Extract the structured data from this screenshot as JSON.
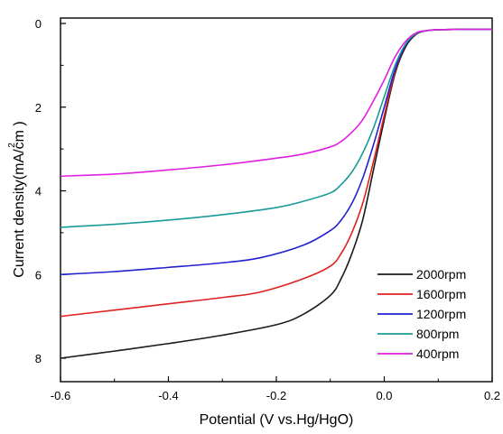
{
  "chart_data": {
    "type": "line",
    "title": "",
    "xlabel": "Potential (V vs.Hg/HgO)",
    "ylabel": "Current density(mA/cm )",
    "ylabel_superscript": "2",
    "xlim": [
      -0.6,
      0.2
    ],
    "ylim": [
      0,
      8.5
    ],
    "y_inverted": true,
    "grid": false,
    "legend_position": "bottom-right",
    "x_ticks": [
      "-0.6",
      "-0.4",
      "-0.2",
      "0.0",
      "0.2"
    ],
    "y_ticks": [
      "0",
      "2",
      "4",
      "6",
      "8"
    ],
    "series": [
      {
        "name": "2000rpm",
        "color": "#1a1a1a",
        "points": [
          [
            -0.6,
            8.0
          ],
          [
            -0.5,
            7.83
          ],
          [
            -0.4,
            7.65
          ],
          [
            -0.3,
            7.45
          ],
          [
            -0.2,
            7.2
          ],
          [
            -0.15,
            6.95
          ],
          [
            -0.1,
            6.5
          ],
          [
            -0.08,
            6.1
          ],
          [
            -0.06,
            5.5
          ],
          [
            -0.04,
            4.7
          ],
          [
            -0.02,
            3.5
          ],
          [
            0.0,
            2.3
          ],
          [
            0.02,
            1.2
          ],
          [
            0.04,
            0.55
          ],
          [
            0.06,
            0.25
          ],
          [
            0.08,
            0.17
          ],
          [
            0.1,
            0.15
          ],
          [
            0.15,
            0.14
          ],
          [
            0.2,
            0.14
          ]
        ]
      },
      {
        "name": "1600rpm",
        "color": "#e02020",
        "points": [
          [
            -0.6,
            7.0
          ],
          [
            -0.5,
            6.85
          ],
          [
            -0.4,
            6.7
          ],
          [
            -0.3,
            6.55
          ],
          [
            -0.23,
            6.42
          ],
          [
            -0.15,
            6.1
          ],
          [
            -0.1,
            5.8
          ],
          [
            -0.08,
            5.5
          ],
          [
            -0.06,
            5.0
          ],
          [
            -0.04,
            4.3
          ],
          [
            -0.02,
            3.3
          ],
          [
            0.0,
            2.2
          ],
          [
            0.02,
            1.15
          ],
          [
            0.04,
            0.5
          ],
          [
            0.06,
            0.24
          ],
          [
            0.08,
            0.17
          ],
          [
            0.1,
            0.15
          ],
          [
            0.15,
            0.14
          ],
          [
            0.2,
            0.14
          ]
        ]
      },
      {
        "name": "1200rpm",
        "color": "#2020d0",
        "points": [
          [
            -0.6,
            6.0
          ],
          [
            -0.5,
            5.93
          ],
          [
            -0.4,
            5.83
          ],
          [
            -0.3,
            5.72
          ],
          [
            -0.23,
            5.6
          ],
          [
            -0.15,
            5.3
          ],
          [
            -0.1,
            4.95
          ],
          [
            -0.08,
            4.7
          ],
          [
            -0.06,
            4.3
          ],
          [
            -0.04,
            3.7
          ],
          [
            -0.02,
            2.9
          ],
          [
            0.0,
            2.0
          ],
          [
            0.02,
            1.1
          ],
          [
            0.04,
            0.5
          ],
          [
            0.06,
            0.24
          ],
          [
            0.08,
            0.17
          ],
          [
            0.1,
            0.15
          ],
          [
            0.15,
            0.14
          ],
          [
            0.2,
            0.14
          ]
        ]
      },
      {
        "name": "800rpm",
        "color": "#1a9a9a",
        "points": [
          [
            -0.6,
            4.87
          ],
          [
            -0.5,
            4.8
          ],
          [
            -0.4,
            4.7
          ],
          [
            -0.3,
            4.57
          ],
          [
            -0.2,
            4.4
          ],
          [
            -0.15,
            4.25
          ],
          [
            -0.1,
            4.05
          ],
          [
            -0.08,
            3.85
          ],
          [
            -0.06,
            3.55
          ],
          [
            -0.04,
            3.1
          ],
          [
            -0.02,
            2.5
          ],
          [
            0.0,
            1.75
          ],
          [
            0.02,
            1.0
          ],
          [
            0.04,
            0.48
          ],
          [
            0.06,
            0.23
          ],
          [
            0.08,
            0.17
          ],
          [
            0.1,
            0.15
          ],
          [
            0.15,
            0.14
          ],
          [
            0.2,
            0.14
          ]
        ]
      },
      {
        "name": "400rpm",
        "color": "#e020e0",
        "points": [
          [
            -0.6,
            3.65
          ],
          [
            -0.5,
            3.6
          ],
          [
            -0.4,
            3.5
          ],
          [
            -0.3,
            3.38
          ],
          [
            -0.2,
            3.22
          ],
          [
            -0.15,
            3.12
          ],
          [
            -0.1,
            2.95
          ],
          [
            -0.08,
            2.82
          ],
          [
            -0.06,
            2.6
          ],
          [
            -0.04,
            2.3
          ],
          [
            -0.02,
            1.85
          ],
          [
            0.0,
            1.35
          ],
          [
            0.02,
            0.8
          ],
          [
            0.04,
            0.42
          ],
          [
            0.06,
            0.22
          ],
          [
            0.08,
            0.17
          ],
          [
            0.1,
            0.15
          ],
          [
            0.15,
            0.14
          ],
          [
            0.2,
            0.14
          ]
        ]
      }
    ]
  }
}
